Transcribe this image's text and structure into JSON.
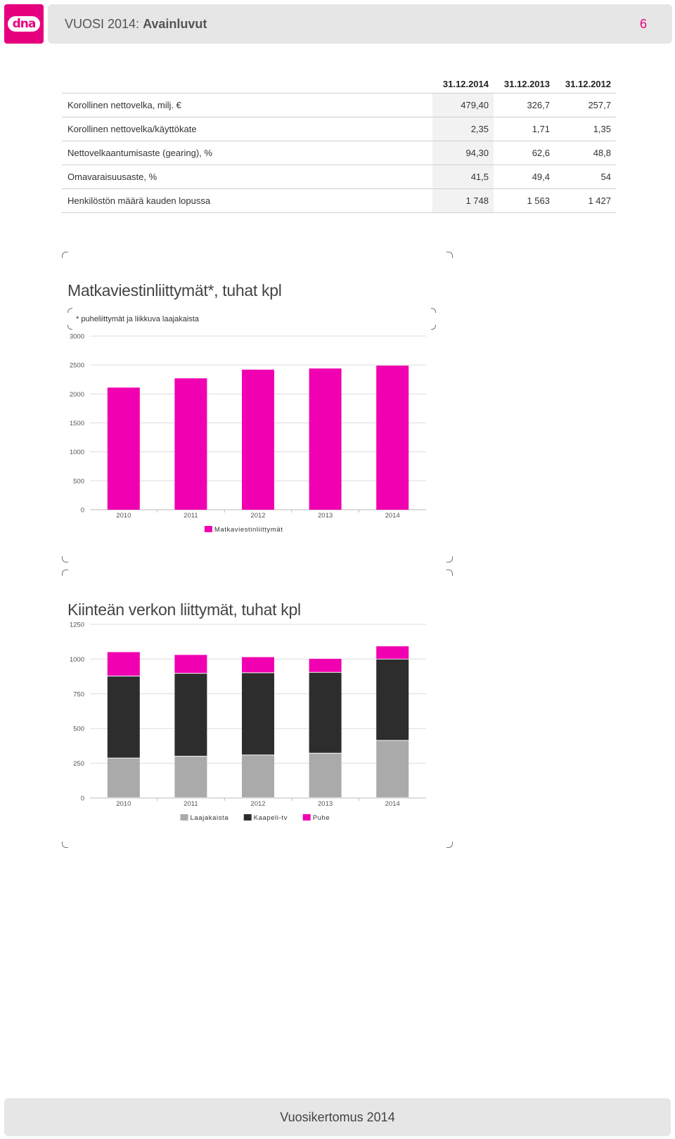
{
  "header": {
    "logo_text": "dna",
    "title_prefix": "VUOSI 2014: ",
    "title_bold": "Avainluvut",
    "page_number": "6"
  },
  "kpi_table": {
    "columns": [
      "31.12.2014",
      "31.12.2013",
      "31.12.2012"
    ],
    "rows": [
      {
        "label": "Korollinen nettovelka, milj. €",
        "values": [
          "479,40",
          "326,7",
          "257,7"
        ]
      },
      {
        "label": "Korollinen nettovelka/käyttökate",
        "values": [
          "2,35",
          "1,71",
          "1,35"
        ]
      },
      {
        "label": "Nettovelkaantumisaste (gearing), %",
        "values": [
          "94,30",
          "62,6",
          "48,8"
        ]
      },
      {
        "label": "Omavaraisuusaste, %",
        "values": [
          "41,5",
          "49,4",
          "54"
        ]
      },
      {
        "label": "Henkilöstön määrä kauden lopussa",
        "values": [
          "1 748",
          "1 563",
          "1 427"
        ]
      }
    ]
  },
  "chart_data": [
    {
      "type": "bar",
      "title": "Matkaviestinliittymät*, tuhat kpl",
      "subtitle": "* puheliittymät ja liikkuva laajakaista",
      "categories": [
        "2010",
        "2011",
        "2012",
        "2013",
        "2014"
      ],
      "series": [
        {
          "name": "Matkaviestinliittymät",
          "color": "#f000b0",
          "values": [
            2110,
            2270,
            2420,
            2440,
            2490
          ]
        }
      ],
      "ylim": [
        0,
        3000
      ],
      "yticks": [
        0,
        500,
        1000,
        1500,
        2000,
        2500,
        3000
      ],
      "grid": true,
      "legend": "bottom"
    },
    {
      "type": "bar",
      "stacked": true,
      "title": "Kiinteän verkon liittymät, tuhat kpl",
      "categories": [
        "2010",
        "2011",
        "2012",
        "2013",
        "2014"
      ],
      "series": [
        {
          "name": "Laajakaista",
          "color": "#aaaaaa",
          "values": [
            285,
            298,
            307,
            320,
            412
          ]
        },
        {
          "name": "Kaapeli-tv",
          "color": "#2d2d2d",
          "values": [
            590,
            597,
            592,
            582,
            585
          ]
        },
        {
          "name": "Puhe",
          "color": "#f000b0",
          "values": [
            175,
            135,
            115,
            100,
            95
          ]
        }
      ],
      "ylim": [
        0,
        1250
      ],
      "yticks": [
        0,
        250,
        500,
        750,
        1000,
        1250
      ],
      "grid": true,
      "legend": "bottom"
    }
  ],
  "footer": {
    "text": "Vuosikertomus 2014"
  }
}
